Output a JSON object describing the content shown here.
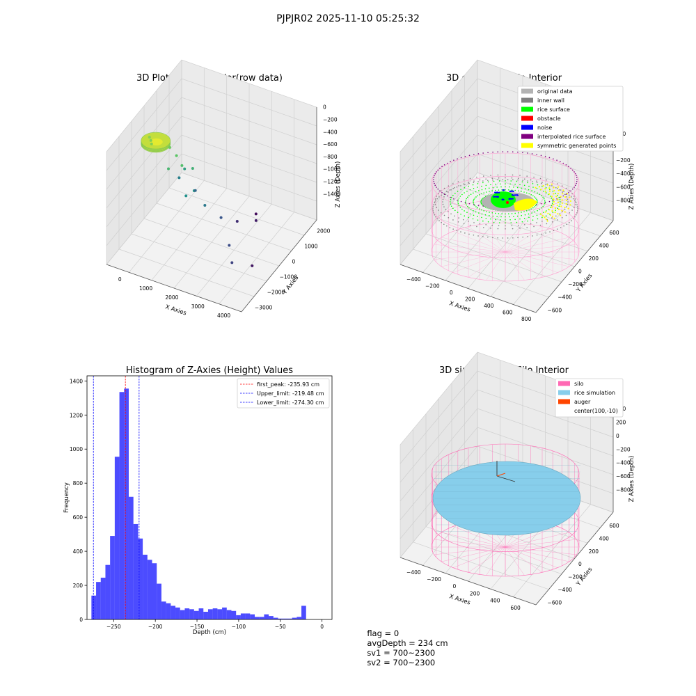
{
  "figure_title": "PJPJR02 2025-11-10 05:25:32",
  "footer": {
    "flag": "flag = 0",
    "avg_depth": "avgDepth = 234 cm",
    "sv1": "sv1 = 700~2300",
    "sv2": "sv2 = 700~2300"
  },
  "chart_data": [
    {
      "type": "scatter",
      "projection": "3d",
      "title": "3D Plot of Silo Interior(row data)",
      "xlabel": "X Axies",
      "ylabel": "Y Axies",
      "zlabel": "Z Axies (Depth)",
      "xticks": [
        "0",
        "1000",
        "2000",
        "3000",
        "4000"
      ],
      "yticks": [
        "2000",
        "1000",
        "0",
        "−1000",
        "−2000",
        "−3000"
      ],
      "zticks": [
        "0",
        "−200",
        "−400",
        "−600",
        "−800",
        "−1000",
        "−1200",
        "−1400"
      ],
      "xlim": [
        -500,
        4500
      ],
      "ylim": [
        -3300,
        2300
      ],
      "zlim": [
        -1450,
        50
      ],
      "colormap": "viridis",
      "points": [
        {
          "x": 0,
          "y": 0,
          "z": -240
        },
        {
          "x": 100,
          "y": 150,
          "z": -240
        },
        {
          "x": -100,
          "y": -100,
          "z": -230
        },
        {
          "x": 600,
          "y": -200,
          "z": -300
        },
        {
          "x": 900,
          "y": -100,
          "z": -350
        },
        {
          "x": 1200,
          "y": 100,
          "z": -400
        },
        {
          "x": 800,
          "y": 300,
          "z": -450
        },
        {
          "x": 1400,
          "y": -300,
          "z": -500
        },
        {
          "x": 1000,
          "y": -500,
          "z": -600
        },
        {
          "x": 1700,
          "y": 200,
          "z": -650
        },
        {
          "x": 1500,
          "y": 400,
          "z": -700
        },
        {
          "x": 700,
          "y": -700,
          "z": -800
        },
        {
          "x": 2000,
          "y": 0,
          "z": -850
        },
        {
          "x": 1200,
          "y": -900,
          "z": -950
        },
        {
          "x": 2400,
          "y": -400,
          "z": -1050
        },
        {
          "x": 3200,
          "y": 600,
          "z": -1100
        },
        {
          "x": 3600,
          "y": 1200,
          "z": -1150
        },
        {
          "x": 2600,
          "y": -1200,
          "z": -1250
        },
        {
          "x": 3000,
          "y": -1800,
          "z": -1320
        },
        {
          "x": 3900,
          "y": 300,
          "z": -1350
        },
        {
          "x": 2700,
          "y": -2400,
          "z": -1400
        }
      ]
    },
    {
      "type": "scatter",
      "projection": "3d",
      "title": "3D classify of Silo Interior",
      "xlabel": "X Axies",
      "ylabel": "Y Axies",
      "zlabel": "Z Axies (Depth)",
      "xticks": [
        "−400",
        "−200",
        "0",
        "200",
        "400",
        "600",
        "800"
      ],
      "yticks": [
        "600",
        "400",
        "200",
        "0",
        "−200",
        "−400",
        "−600"
      ],
      "zticks": [
        "200",
        "0",
        "−200",
        "−400",
        "−600",
        "−800"
      ],
      "xlim": [
        -500,
        850
      ],
      "ylim": [
        -650,
        650
      ],
      "zlim": [
        -900,
        400
      ],
      "legend_location": "upper right",
      "legend": [
        {
          "label": "original data",
          "color": "#b3b3b3"
        },
        {
          "label": "inner wall",
          "color": "#808080"
        },
        {
          "label": "rice surface",
          "color": "#00ff00"
        },
        {
          "label": "obstacle",
          "color": "#ff0000"
        },
        {
          "label": "noise",
          "color": "#0000ff"
        },
        {
          "label": "interpolated rice surface",
          "color": "#800080"
        },
        {
          "label": "symmetric generated points",
          "color": "#ffff00"
        }
      ]
    },
    {
      "type": "histogram",
      "title": "Histogram of Z-Axies (Height) Values",
      "xlabel": "Depth (cm)",
      "ylabel": "Frequency",
      "xlim": [
        -282,
        12
      ],
      "ylim": [
        0,
        1430
      ],
      "xticks": [
        -250,
        -200,
        -150,
        -100,
        -50,
        0
      ],
      "xtick_labels": [
        "−250",
        "−200",
        "−150",
        "−100",
        "−50",
        "0"
      ],
      "yticks": [
        0,
        200,
        400,
        600,
        800,
        1000,
        1200,
        1400
      ],
      "bar_color": "#0000ff",
      "bin_edges_start": -276.7,
      "bin_width": 5.6,
      "counts": [
        140,
        220,
        245,
        320,
        490,
        955,
        1335,
        1355,
        720,
        560,
        475,
        380,
        350,
        330,
        210,
        105,
        95,
        80,
        70,
        55,
        65,
        60,
        50,
        65,
        45,
        60,
        65,
        60,
        70,
        55,
        50,
        25,
        35,
        35,
        30,
        15,
        15,
        30,
        20,
        10,
        5,
        5,
        5,
        10,
        15,
        80
      ],
      "vlines": [
        {
          "label": "first_peak: -235.93 cm",
          "x": -235.93,
          "color": "#ff0000"
        },
        {
          "label": "Upper_limit: -219.48 cm",
          "x": -219.48,
          "color": "#0000ff"
        },
        {
          "label": "Lower_limit: -274.30 cm",
          "x": -274.3,
          "color": "#0000ff"
        }
      ],
      "legend_location": "upper right"
    },
    {
      "type": "surface",
      "projection": "3d",
      "title": "3D simulation of Silo Interior",
      "xlabel": "X Axies",
      "ylabel": "Y Axies",
      "zlabel": "Z Axies (Depth)",
      "xticks": [
        "−400",
        "−200",
        "0",
        "200",
        "400",
        "600"
      ],
      "yticks": [
        "600",
        "400",
        "200",
        "0",
        "−200",
        "−400",
        "−600"
      ],
      "zticks": [
        "400",
        "200",
        "0",
        "−200",
        "−400",
        "−600",
        "−800"
      ],
      "xlim": [
        -500,
        700
      ],
      "ylim": [
        -650,
        650
      ],
      "zlim": [
        -900,
        450
      ],
      "legend_location": "upper right",
      "legend": [
        {
          "label": "silo",
          "color": "#ff69b4"
        },
        {
          "label": "rice simulation",
          "color": "#87ceeb"
        },
        {
          "label": "auger",
          "color": "#ff4500"
        },
        {
          "label": "center(100,-10)",
          "color": ""
        }
      ]
    }
  ]
}
